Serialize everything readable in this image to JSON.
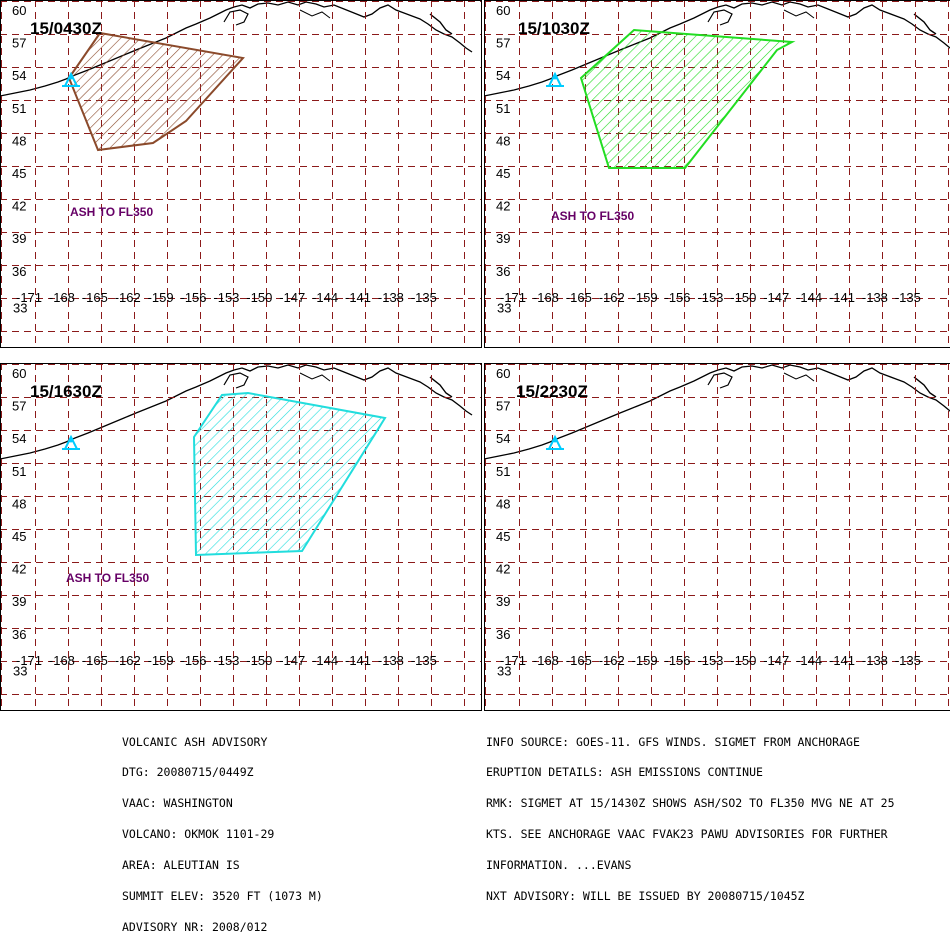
{
  "panels": [
    {
      "time": "15/0430Z",
      "ash_label": "ASH TO FL350",
      "color": "#8b4a2b"
    },
    {
      "time": "15/1030Z",
      "ash_label": "ASH TO FL350",
      "color": "#22dd22"
    },
    {
      "time": "15/1630Z",
      "ash_label": "ASH TO FL350",
      "color": "#22dddd"
    },
    {
      "time": "15/2230Z",
      "ash_label": "",
      "color": ""
    }
  ],
  "map": {
    "lat_labels": [
      "60",
      "57",
      "54",
      "51",
      "48",
      "45",
      "42",
      "39",
      "36",
      "33"
    ],
    "lon_labels": [
      "-171",
      "-168",
      "-165",
      "-162",
      "-159",
      "-156",
      "-153",
      "-150",
      "-147",
      "-144",
      "-141",
      "-138",
      "-135"
    ],
    "grid_color": "#8b1a1a",
    "coast_color": "#000000",
    "volcano_color": "#00ccff"
  },
  "advisory_left": [
    "VOLCANIC ASH ADVISORY",
    "DTG: 20080715/0449Z",
    "VAAC: WASHINGTON",
    "VOLCANO: OKMOK 1101-29",
    "AREA: ALEUTIAN IS",
    "SUMMIT ELEV: 3520 FT (1073 M)",
    "ADVISORY NR: 2008/012"
  ],
  "advisory_right": [
    "INFO SOURCE: GOES-11. GFS WINDS. SIGMET FROM ANCHORAGE",
    "ERUPTION DETAILS: ASH EMISSIONS CONTINUE",
    "RMK: SIGMET AT 15/1430Z SHOWS ASH/SO2 TO FL350 MVG NE AT 25",
    "KTS. SEE ANCHORAGE VAAC FVAK23 PAWU ADVISORIES FOR FURTHER",
    "INFORMATION. ...EVANS",
    "NXT ADVISORY: WILL BE ISSUED BY 20080715/1045Z"
  ]
}
